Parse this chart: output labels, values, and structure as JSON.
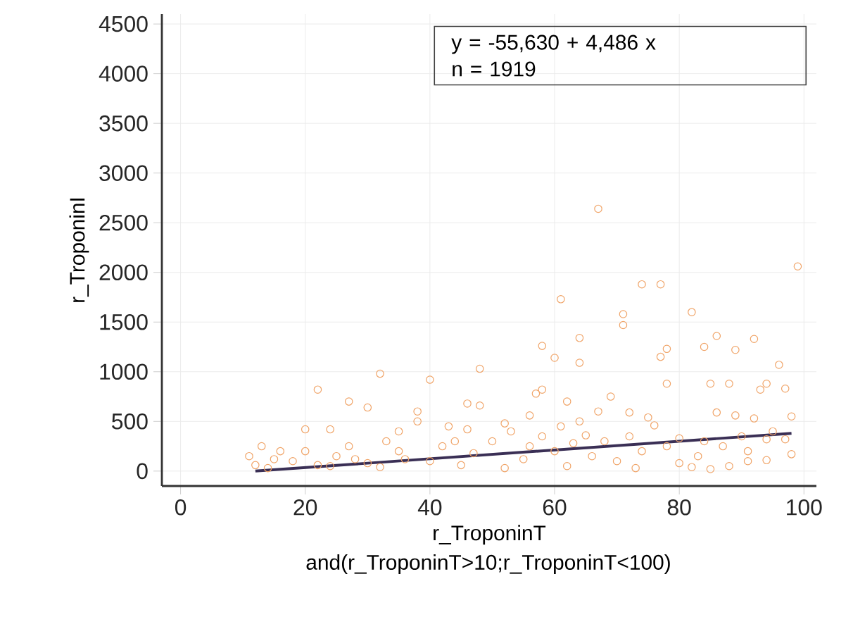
{
  "chart_data": {
    "type": "scatter",
    "xlabel": "r_TroponinT",
    "ylabel": "r_TroponinI",
    "annotations": [
      "y = -55,630  +  4,486  x",
      "n = 1919",
      "and(r_TroponinT>10;r_TroponinT<100)"
    ],
    "xlim": [
      -3,
      102
    ],
    "ylim": [
      -150,
      4600
    ],
    "xticks": [
      0,
      20,
      40,
      60,
      80,
      100
    ],
    "yticks": [
      0,
      500,
      1000,
      1500,
      2000,
      2500,
      3000,
      3500,
      4000,
      4500
    ],
    "grid": true,
    "marker": "circle",
    "series": [
      {
        "color": "#f0a468",
        "x": [
          67,
          99,
          74,
          77,
          61,
          82,
          71,
          71,
          86,
          64,
          92,
          58,
          84,
          78,
          89,
          60,
          77,
          64,
          96,
          48,
          32,
          40,
          85,
          88,
          78,
          94,
          97,
          93,
          22,
          58,
          57,
          69,
          27,
          62,
          30,
          46,
          48,
          72,
          67,
          86,
          89,
          92,
          98,
          75,
          56,
          38,
          38,
          43,
          52,
          46,
          24,
          20,
          35,
          53,
          76,
          80,
          64,
          61,
          65,
          84,
          94,
          97,
          91,
          91,
          94,
          88,
          85,
          98,
          44,
          33,
          27,
          16,
          11,
          12,
          14,
          18,
          22,
          25,
          30,
          35,
          40,
          42,
          47,
          50,
          55,
          58,
          60,
          62,
          66,
          68,
          70,
          72,
          74,
          78,
          80,
          83,
          87,
          90,
          95,
          13,
          15,
          20,
          24,
          28,
          32,
          36,
          45,
          52,
          56,
          63,
          73,
          82
        ],
        "values": [
          2640,
          2060,
          1880,
          1880,
          1730,
          1600,
          1580,
          1470,
          1360,
          1340,
          1330,
          1260,
          1250,
          1230,
          1220,
          1140,
          1150,
          1090,
          1070,
          1030,
          980,
          920,
          880,
          880,
          880,
          880,
          830,
          820,
          820,
          820,
          780,
          750,
          700,
          700,
          640,
          680,
          660,
          590,
          600,
          590,
          560,
          530,
          550,
          540,
          560,
          600,
          500,
          450,
          480,
          420,
          420,
          420,
          400,
          400,
          460,
          330,
          500,
          450,
          360,
          300,
          320,
          320,
          200,
          100,
          110,
          50,
          20,
          170,
          300,
          300,
          250,
          200,
          150,
          60,
          30,
          100,
          60,
          150,
          80,
          200,
          100,
          250,
          180,
          300,
          120,
          350,
          200,
          50,
          150,
          300,
          100,
          350,
          200,
          250,
          80,
          150,
          250,
          350,
          400,
          250,
          120,
          200,
          50,
          120,
          40,
          120,
          60,
          30,
          250,
          280,
          30,
          40
        ]
      },
      {
        "type": "line",
        "color": "#3a2f55",
        "marker": "none",
        "line_style": "solid",
        "x": [
          12,
          98
        ],
        "values": [
          0,
          380
        ]
      }
    ]
  }
}
